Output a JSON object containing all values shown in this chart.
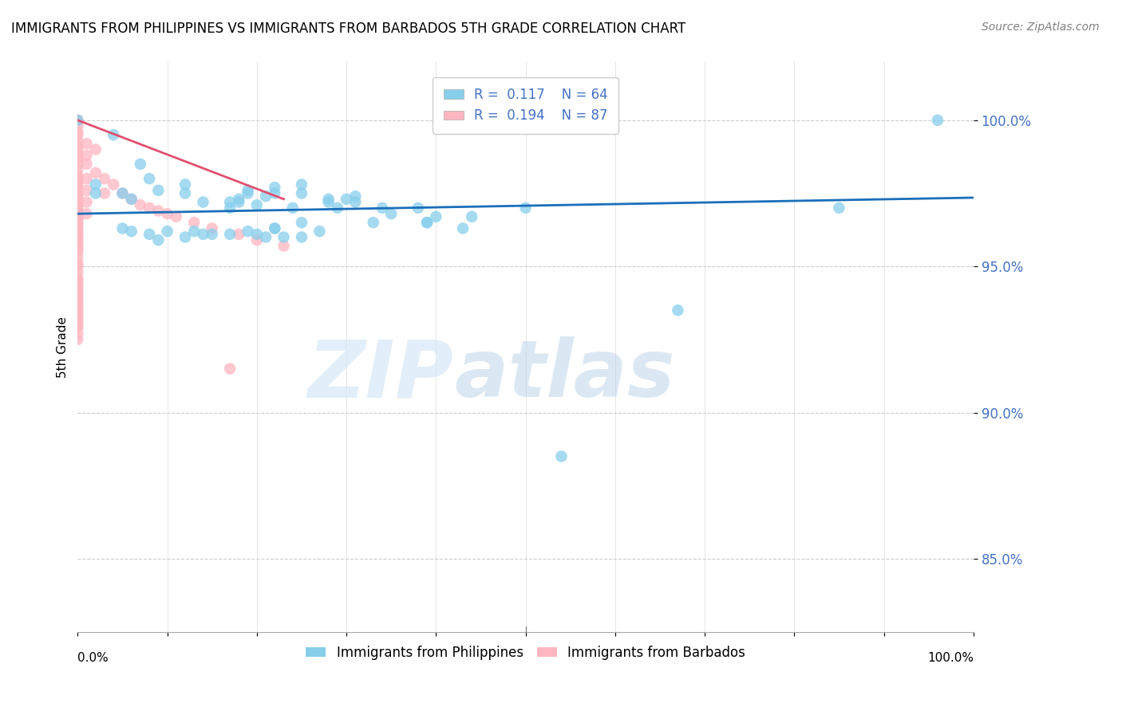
{
  "title": "IMMIGRANTS FROM PHILIPPINES VS IMMIGRANTS FROM BARBADOS 5TH GRADE CORRELATION CHART",
  "source": "Source: ZipAtlas.com",
  "ylabel": "5th Grade",
  "yticks": [
    85.0,
    90.0,
    95.0,
    100.0
  ],
  "ytick_labels": [
    "85.0%",
    "90.0%",
    "95.0%",
    "100.0%"
  ],
  "xlim": [
    0.0,
    1.0
  ],
  "ylim": [
    82.5,
    102.0
  ],
  "legend_blue_R": "0.117",
  "legend_blue_N": "64",
  "legend_pink_R": "0.194",
  "legend_pink_N": "87",
  "color_blue": "#87CEEB",
  "color_pink": "#FFB6C1",
  "color_blue_line": "#1a6fba",
  "color_pink_line": "#e05070",
  "watermark_text": "ZIP",
  "watermark_text2": "atlas",
  "blue_scatter_x": [
    0.0,
    0.04,
    0.07,
    0.08,
    0.02,
    0.02,
    0.05,
    0.12,
    0.09,
    0.06,
    0.12,
    0.14,
    0.19,
    0.19,
    0.25,
    0.18,
    0.21,
    0.22,
    0.18,
    0.28,
    0.25,
    0.31,
    0.31,
    0.3,
    0.28,
    0.2,
    0.24,
    0.29,
    0.17,
    0.17,
    0.22,
    0.34,
    0.35,
    0.38,
    0.25,
    0.39,
    0.4,
    0.44,
    0.19,
    0.25,
    0.22,
    0.2,
    0.23,
    0.14,
    0.12,
    0.06,
    0.05,
    0.22,
    0.21,
    0.1,
    0.08,
    0.13,
    0.15,
    0.17,
    0.09,
    0.33,
    0.39,
    0.27,
    0.43,
    0.5,
    0.67,
    0.96,
    0.85,
    0.54
  ],
  "blue_scatter_y": [
    100.0,
    99.5,
    98.5,
    98.0,
    97.8,
    97.5,
    97.5,
    97.8,
    97.6,
    97.3,
    97.5,
    97.2,
    97.6,
    97.5,
    97.8,
    97.3,
    97.4,
    97.5,
    97.2,
    97.3,
    97.5,
    97.4,
    97.2,
    97.3,
    97.2,
    97.1,
    97.0,
    97.0,
    97.2,
    97.0,
    97.7,
    97.0,
    96.8,
    97.0,
    96.5,
    96.5,
    96.7,
    96.7,
    96.2,
    96.0,
    96.3,
    96.1,
    96.0,
    96.1,
    96.0,
    96.2,
    96.3,
    96.3,
    96.0,
    96.2,
    96.1,
    96.2,
    96.1,
    96.1,
    95.9,
    96.5,
    96.5,
    96.2,
    96.3,
    97.0,
    93.5,
    100.0,
    97.0,
    88.5
  ],
  "pink_scatter_x": [
    0.0,
    0.0,
    0.0,
    0.0,
    0.0,
    0.0,
    0.0,
    0.0,
    0.0,
    0.0,
    0.0,
    0.0,
    0.0,
    0.0,
    0.0,
    0.0,
    0.0,
    0.0,
    0.0,
    0.0,
    0.0,
    0.0,
    0.0,
    0.0,
    0.0,
    0.0,
    0.0,
    0.0,
    0.0,
    0.0,
    0.0,
    0.0,
    0.0,
    0.0,
    0.0,
    0.0,
    0.0,
    0.0,
    0.0,
    0.0,
    0.01,
    0.01,
    0.01,
    0.01,
    0.01,
    0.01,
    0.01,
    0.02,
    0.02,
    0.03,
    0.03,
    0.04,
    0.05,
    0.06,
    0.07,
    0.08,
    0.09,
    0.1,
    0.11,
    0.13,
    0.15,
    0.18,
    0.2,
    0.23,
    0.0,
    0.0,
    0.0,
    0.0,
    0.0,
    0.0,
    0.0,
    0.0,
    0.0,
    0.0,
    0.0,
    0.0,
    0.0,
    0.0,
    0.0,
    0.0,
    0.0,
    0.0,
    0.0,
    0.0,
    0.0,
    0.0,
    0.17
  ],
  "pink_scatter_y": [
    100.0,
    100.0,
    99.8,
    99.6,
    99.5,
    99.3,
    99.1,
    99.0,
    98.8,
    98.7,
    98.5,
    98.3,
    98.1,
    98.0,
    97.9,
    97.8,
    97.7,
    97.5,
    97.4,
    97.3,
    97.2,
    97.1,
    97.0,
    96.9,
    96.8,
    96.7,
    96.6,
    96.5,
    96.4,
    96.3,
    96.2,
    96.1,
    96.0,
    95.9,
    95.8,
    95.7,
    95.6,
    95.5,
    95.3,
    95.1,
    99.2,
    98.8,
    98.5,
    98.0,
    97.6,
    97.2,
    96.8,
    99.0,
    98.2,
    98.0,
    97.5,
    97.8,
    97.5,
    97.3,
    97.1,
    97.0,
    96.9,
    96.8,
    96.7,
    96.5,
    96.3,
    96.1,
    95.9,
    95.7,
    95.0,
    94.8,
    94.6,
    94.4,
    94.2,
    94.0,
    93.8,
    93.6,
    93.4,
    93.2,
    93.0,
    94.5,
    94.3,
    94.1,
    93.9,
    93.7,
    93.5,
    93.3,
    93.1,
    92.9,
    92.7,
    92.5,
    91.5
  ],
  "blue_line_x": [
    0.0,
    1.0
  ],
  "blue_line_y": [
    96.8,
    97.35
  ],
  "pink_line_x": [
    0.0,
    0.23
  ],
  "pink_line_y": [
    100.0,
    97.3
  ]
}
